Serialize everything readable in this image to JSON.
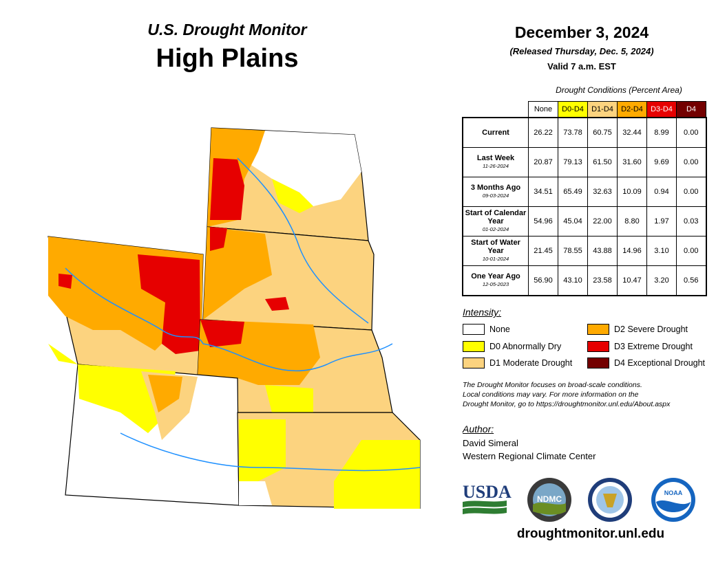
{
  "header": {
    "subtitle": "U.S. Drought Monitor",
    "region": "High Plains",
    "date": "December 3, 2024",
    "released": "(Released Thursday, Dec. 5, 2024)",
    "valid": "Valid 7 a.m. EST"
  },
  "colors": {
    "none": "#ffffff",
    "d0": "#ffff00",
    "d1": "#fcd37f",
    "d2": "#ffaa00",
    "d3": "#e60000",
    "d4": "#730000",
    "water": "#1e90ff"
  },
  "table": {
    "caption": "Drought Conditions (Percent Area)",
    "columns": [
      "None",
      "D0-D4",
      "D1-D4",
      "D2-D4",
      "D3-D4",
      "D4"
    ],
    "rows": [
      {
        "label": "Current",
        "sub": "",
        "values": [
          "26.22",
          "73.78",
          "60.75",
          "32.44",
          "8.99",
          "0.00"
        ]
      },
      {
        "label": "Last Week",
        "sub": "11-26-2024",
        "values": [
          "20.87",
          "79.13",
          "61.50",
          "31.60",
          "9.69",
          "0.00"
        ]
      },
      {
        "label": "3 Months Ago",
        "sub": "09-03-2024",
        "values": [
          "34.51",
          "65.49",
          "32.63",
          "10.09",
          "0.94",
          "0.00"
        ]
      },
      {
        "label": "Start of Calendar Year",
        "sub": "01-02-2024",
        "values": [
          "54.96",
          "45.04",
          "22.00",
          "8.80",
          "1.97",
          "0.03"
        ]
      },
      {
        "label": "Start of Water Year",
        "sub": "10-01-2024",
        "values": [
          "21.45",
          "78.55",
          "43.88",
          "14.96",
          "3.10",
          "0.00"
        ]
      },
      {
        "label": "One Year Ago",
        "sub": "12-05-2023",
        "values": [
          "56.90",
          "43.10",
          "23.58",
          "10.47",
          "3.20",
          "0.56"
        ]
      }
    ]
  },
  "legend": {
    "title": "Intensity:",
    "items": [
      {
        "key": "none",
        "label": "None"
      },
      {
        "key": "d0",
        "label": "D0 Abnormally Dry"
      },
      {
        "key": "d1",
        "label": "D1 Moderate Drought"
      },
      {
        "key": "d2",
        "label": "D2 Severe Drought"
      },
      {
        "key": "d3",
        "label": "D3 Extreme Drought"
      },
      {
        "key": "d4",
        "label": "D4 Exceptional Drought"
      }
    ]
  },
  "note": {
    "line1": "The Drought Monitor focuses on broad-scale conditions.",
    "line2": "Local conditions may vary. For more information on the",
    "line3": "Drought Monitor, go to https://droughtmonitor.unl.edu/About.aspx"
  },
  "author": {
    "title": "Author:",
    "name": "David Simeral",
    "org": "Western Regional Climate Center"
  },
  "logos": {
    "usda": "USDA",
    "ndmc": "NDMC",
    "noaa": "NOAA"
  },
  "footer": {
    "url": "droughtmonitor.unl.edu"
  }
}
